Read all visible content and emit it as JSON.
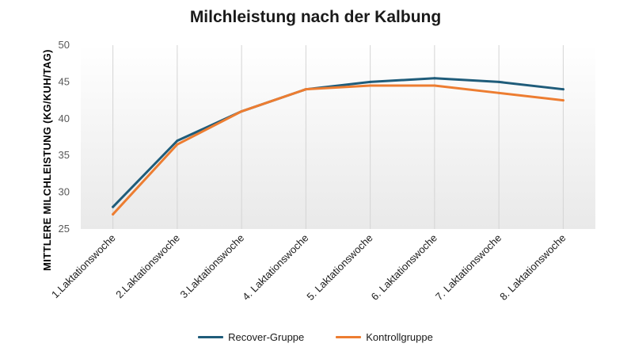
{
  "chart_data": {
    "type": "line",
    "title": "Milchleistung nach der Kalbung",
    "xlabel": "",
    "ylabel": "MITTLERE MILCHLEISTUNG (KG/KUH/TAG)",
    "categories": [
      "1.Laktationswoche",
      "2.Laktationswoche",
      "3.Laktationswoche",
      "4. Laktationswoche",
      "5. Laktationswoche",
      "6. Laktationswoche",
      "7. Laktationswoche",
      "8. Laktationswoche"
    ],
    "ylim": [
      25,
      50
    ],
    "yticks": [
      25,
      30,
      35,
      40,
      45,
      50
    ],
    "grid": "vertical",
    "legend_position": "bottom",
    "series": [
      {
        "name": "Recover-Gruppe",
        "color": "#1f5c7a",
        "values": [
          28,
          37,
          41,
          44,
          45,
          45.5,
          45,
          44
        ]
      },
      {
        "name": "Kontrollgruppe",
        "color": "#ed7d31",
        "values": [
          27,
          36.5,
          41,
          44,
          44.5,
          44.5,
          43.5,
          42.5
        ]
      }
    ]
  }
}
